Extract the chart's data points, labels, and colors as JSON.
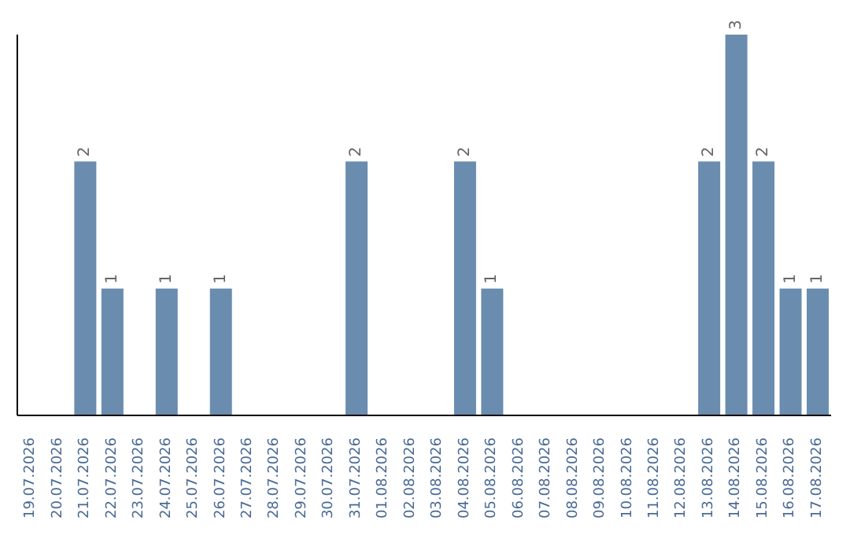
{
  "chart_data": {
    "type": "bar",
    "categories": [
      "19.07.2026",
      "20.07.2026",
      "21.07.2026",
      "22.07.2026",
      "23.07.2026",
      "24.07.2026",
      "25.07.2026",
      "26.07.2026",
      "27.07.2026",
      "28.07.2026",
      "29.07.2026",
      "30.07.2026",
      "31.07.2026",
      "01.08.2026",
      "02.08.2026",
      "03.08.2026",
      "04.08.2026",
      "05.08.2026",
      "06.08.2026",
      "07.08.2026",
      "08.08.2026",
      "09.08.2026",
      "10.08.2026",
      "11.08.2026",
      "12.08.2026",
      "13.08.2026",
      "14.08.2026",
      "15.08.2026",
      "16.08.2026",
      "17.08.2026"
    ],
    "values": [
      0,
      0,
      2,
      1,
      0,
      1,
      0,
      1,
      0,
      0,
      0,
      0,
      2,
      0,
      0,
      0,
      2,
      1,
      0,
      0,
      0,
      0,
      0,
      0,
      0,
      2,
      3,
      2,
      1,
      1
    ],
    "value_labels": [
      null,
      null,
      "2",
      "1",
      null,
      "1",
      null,
      "1",
      null,
      null,
      null,
      null,
      "2",
      null,
      null,
      null,
      "2",
      "1",
      null,
      null,
      null,
      null,
      null,
      null,
      null,
      "2",
      "3",
      "2",
      "1",
      "1"
    ],
    "color": "#6a8caf",
    "grid": false,
    "legend": false
  }
}
